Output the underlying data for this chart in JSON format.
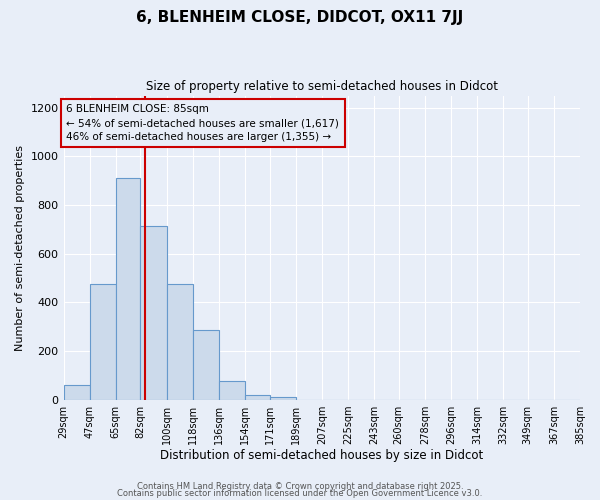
{
  "title": "6, BLENHEIM CLOSE, DIDCOT, OX11 7JJ",
  "subtitle": "Size of property relative to semi-detached houses in Didcot",
  "xlabel": "Distribution of semi-detached houses by size in Didcot",
  "ylabel": "Number of semi-detached properties",
  "bar_color": "#ccdaeb",
  "bar_edge_color": "#6699cc",
  "background_color": "#e8eef8",
  "grid_color": "#ffffff",
  "vline_x": 85,
  "vline_color": "#cc0000",
  "annotation_box_color": "#cc0000",
  "annotation_title": "6 BLENHEIM CLOSE: 85sqm",
  "annotation_line1": "← 54% of semi-detached houses are smaller (1,617)",
  "annotation_line2": "46% of semi-detached houses are larger (1,355) →",
  "bin_edges": [
    29,
    47,
    65,
    82,
    100,
    118,
    136,
    154,
    171,
    189,
    207,
    225,
    243,
    260,
    278,
    296,
    314,
    332,
    349,
    367,
    385
  ],
  "bin_labels": [
    "29sqm",
    "47sqm",
    "65sqm",
    "82sqm",
    "100sqm",
    "118sqm",
    "136sqm",
    "154sqm",
    "171sqm",
    "189sqm",
    "207sqm",
    "225sqm",
    "243sqm",
    "260sqm",
    "278sqm",
    "296sqm",
    "314sqm",
    "332sqm",
    "349sqm",
    "367sqm",
    "385sqm"
  ],
  "counts": [
    60,
    475,
    910,
    715,
    475,
    285,
    75,
    20,
    10,
    0,
    0,
    0,
    0,
    0,
    0,
    0,
    0,
    0,
    0,
    0
  ],
  "ylim": [
    0,
    1250
  ],
  "yticks": [
    0,
    200,
    400,
    600,
    800,
    1000,
    1200
  ],
  "footer1": "Contains HM Land Registry data © Crown copyright and database right 2025.",
  "footer2": "Contains public sector information licensed under the Open Government Licence v3.0."
}
